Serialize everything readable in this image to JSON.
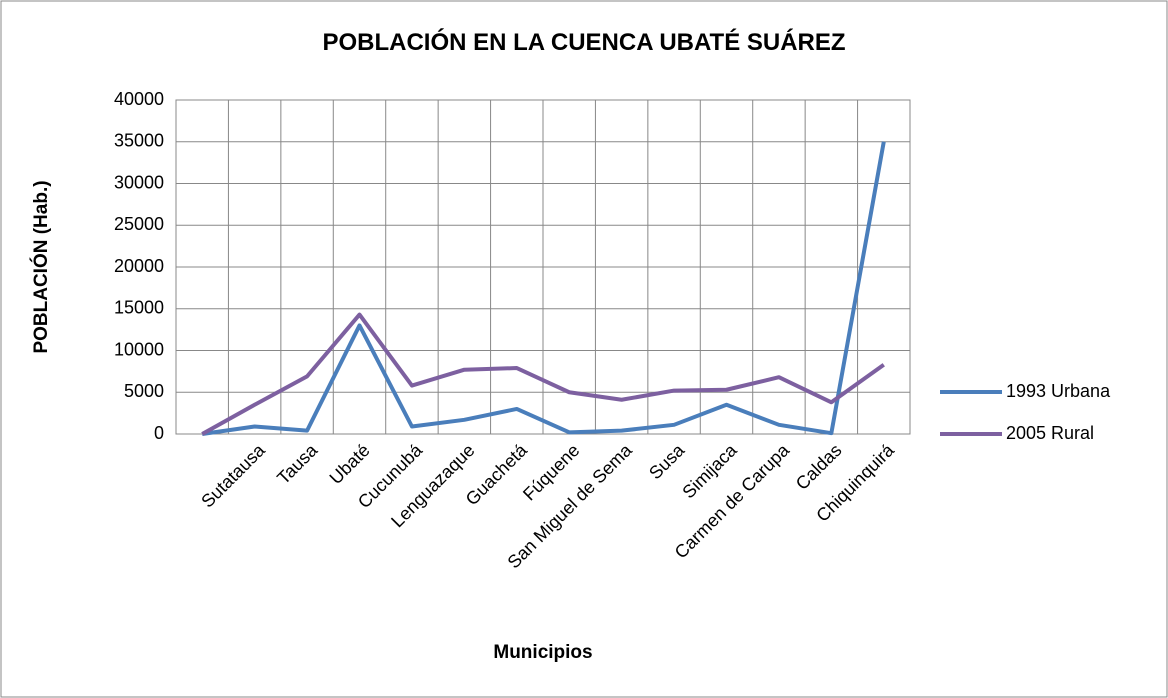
{
  "chart_data": {
    "type": "line",
    "title": "POBLACIÓN EN LA CUENCA UBATÉ SUÁREZ",
    "x_label": "Municipios",
    "y_label": "POBLACIÓN (Hab.)",
    "categories": [
      null,
      "Sutatausa",
      "Tausa",
      "Ubaté",
      "Cucunubá",
      "Lenguazaque",
      "Guachetá",
      "Fúquene",
      "San Miguel de Sema",
      "Susa",
      "Simijaca",
      "Carmen de Carupa",
      "Caldas",
      "Chiquinquirá"
    ],
    "series": [
      {
        "name": "1993 Urbana",
        "color": "#4a7ebb",
        "values": [
          0,
          900,
          400,
          13000,
          900,
          1700,
          3000,
          200,
          400,
          1100,
          3500,
          1100,
          100,
          35000
        ]
      },
      {
        "name": "2005 Rural",
        "color": "#7d60a0",
        "values": [
          0,
          3500,
          6900,
          14300,
          5800,
          7700,
          7900,
          5000,
          4100,
          5200,
          5300,
          6800,
          3800,
          8300
        ]
      }
    ],
    "ylim": [
      0,
      40000
    ],
    "yticks": [
      0,
      5000,
      10000,
      15000,
      20000,
      25000,
      30000,
      35000,
      40000
    ],
    "grid": true,
    "legend": "right"
  }
}
